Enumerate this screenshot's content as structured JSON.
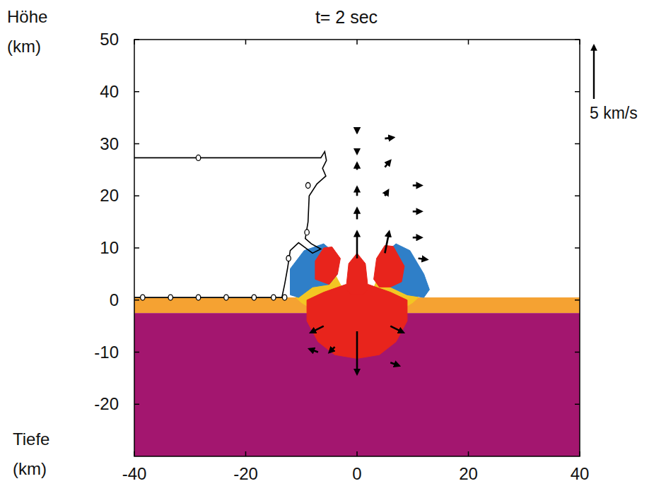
{
  "chart_data": {
    "type": "field",
    "title": "t= 2 sec",
    "y_label_top": "Höhe (km)",
    "y_label_bottom": "Tiefe (km)",
    "xlim": [
      -40,
      40
    ],
    "ylim": [
      -30,
      50
    ],
    "xticks": [
      -40,
      -20,
      0,
      20,
      40
    ],
    "yticks": [
      -20,
      -10,
      0,
      10,
      20,
      30,
      40,
      50
    ],
    "layers": [
      {
        "top": 0.5,
        "bottom": -2.5,
        "color": "#f5a232"
      },
      {
        "top": -2.5,
        "bottom": -30,
        "color": "#a3166f"
      }
    ],
    "regions": [
      {
        "color": "#f3c623",
        "x": [
          -11,
          -9,
          -7,
          -4,
          -2.5,
          -3,
          -6,
          -10
        ],
        "y": [
          0.5,
          4,
          6.5,
          5,
          2,
          -1,
          -3,
          -0.5
        ]
      },
      {
        "color": "#f3c623",
        "x": [
          2.5,
          4,
          7,
          9,
          11,
          10,
          6,
          3
        ],
        "y": [
          1,
          5,
          6.5,
          4,
          0.5,
          -0.5,
          -3,
          -1
        ]
      },
      {
        "color": "#e8241c",
        "x": [
          -9,
          -9,
          -7,
          -4,
          0,
          4,
          7,
          9,
          9,
          6,
          2,
          0,
          -2,
          -6
        ],
        "y": [
          0,
          -4,
          -8,
          -10.5,
          -11.2,
          -10.5,
          -8,
          -4,
          0,
          1.5,
          3,
          1.5,
          3,
          1.5
        ]
      },
      {
        "color": "#2f7fc8",
        "x": [
          -12,
          -12,
          -9.5,
          -6,
          -4,
          -3.5,
          -5,
          -8,
          -10.5
        ],
        "y": [
          1,
          6,
          9.5,
          10.8,
          9,
          5,
          3,
          2.5,
          0.5
        ]
      },
      {
        "color": "#2f7fc8",
        "x": [
          3.5,
          5,
          7,
          9.5,
          12,
          13,
          12,
          9,
          6
        ],
        "y": [
          5,
          9,
          10.8,
          9.5,
          5,
          2,
          0.5,
          1,
          2.5
        ]
      },
      {
        "color": "#e8241c",
        "x": [
          -7.5,
          -7.5,
          -6,
          -4.5,
          -3,
          -3.5,
          -5
        ],
        "y": [
          4,
          7.5,
          10,
          10.2,
          8,
          5,
          3
        ]
      },
      {
        "color": "#e8241c",
        "x": [
          3,
          3.5,
          5,
          6.5,
          8.5,
          8,
          6,
          4
        ],
        "y": [
          4,
          8,
          10.5,
          10.3,
          6.5,
          3.5,
          2.5,
          2.5
        ]
      },
      {
        "color": "#e8241c",
        "x": [
          -2,
          -1.5,
          0,
          1.5,
          2,
          1,
          -1
        ],
        "y": [
          2,
          7,
          9,
          7,
          2,
          1,
          1
        ]
      }
    ],
    "series": [
      {
        "color": "#000000",
        "line_style": "solid",
        "marker": "none",
        "x": [
          -40,
          -6.5,
          -5.8,
          -5.5,
          -6.2,
          -5.6,
          -7.2,
          -8.6,
          -8.8,
          -9.3,
          -8.2,
          -6.5,
          -8,
          -10.5,
          -12,
          -12.5,
          -13,
          -13.5,
          -40
        ],
        "y": [
          27.3,
          27.3,
          28.5,
          26.8,
          25.3,
          23.8,
          22.3,
          20,
          15,
          11.8,
          10.8,
          9.8,
          9,
          11,
          9.5,
          6,
          3,
          0.5,
          0.5
        ]
      },
      {
        "color": "#000000",
        "line_style": "none",
        "marker": "circle",
        "x": [
          -28.5,
          -8.8,
          -9,
          -12.3,
          -38.5,
          -33.5,
          -28.5,
          -23.5,
          -18.5,
          -15,
          -13
        ],
        "y": [
          27.3,
          22,
          13,
          8,
          0.5,
          0.5,
          0.5,
          0.5,
          0.5,
          0.5,
          0.5
        ]
      }
    ],
    "vectors": {
      "x": [
        0,
        0,
        0,
        0,
        0,
        0,
        5,
        5,
        5,
        5,
        10,
        10,
        10,
        11,
        0,
        -6,
        6,
        -4,
        -7,
        6
      ],
      "y": [
        33,
        29,
        25,
        20,
        15.5,
        8,
        31,
        25.5,
        20,
        9,
        22,
        17,
        12,
        8,
        -6,
        -5,
        -5,
        -9,
        -10,
        -12
      ],
      "u": [
        0,
        0,
        0,
        0,
        0,
        0,
        0.8,
        0.5,
        0.3,
        0.4,
        0.8,
        0.8,
        0.8,
        0.8,
        0,
        -1.2,
        1.2,
        -0.5,
        -0.8,
        0.8
      ],
      "v": [
        -0.4,
        -0.4,
        0.6,
        0.8,
        1,
        2.5,
        0.1,
        0.6,
        0.5,
        2,
        0,
        0,
        0,
        -0.1,
        -4,
        -0.6,
        -0.6,
        -0.5,
        0.3,
        -0.3
      ]
    },
    "vector_scale": {
      "value": 5,
      "label": "5 km/s"
    }
  }
}
